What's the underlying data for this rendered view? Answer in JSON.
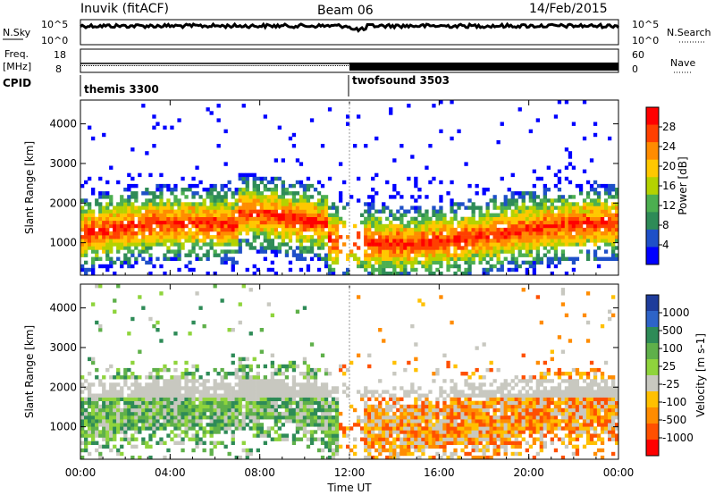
{
  "header": {
    "station": "Inuvik (fitACF)",
    "beam": "Beam 06",
    "date": "14/Feb/2015"
  },
  "noise_panel": {
    "left_label": "N.Sky",
    "right_label": "N.Search",
    "ticks_left": [
      "10^5",
      "10^0"
    ],
    "ticks_right": [
      "10^5",
      "10^0"
    ]
  },
  "freq_panel": {
    "left_label_1": "Freq.",
    "left_label_2": "[MHz]",
    "right_label": "Nave",
    "ticks_left": [
      "18",
      "8"
    ],
    "ticks_right": [
      "60",
      "0"
    ]
  },
  "cpid": {
    "label": "CPID",
    "modes": [
      {
        "name": "themis 3300",
        "start_hour": 0
      },
      {
        "name": "twofsound 3503",
        "start_hour": 12
      }
    ]
  },
  "chart_data": [
    {
      "type": "heatmap",
      "parameter": "Power",
      "ylabel": "Slant Range [km]",
      "colorbar_label": "Power [dB]",
      "colorbar_ticks": [
        "28",
        "24",
        "20",
        "16",
        "12",
        "8",
        "4"
      ],
      "colors": [
        "#ff0000",
        "#ff4000",
        "#ff8c00",
        "#ffc800",
        "#b4d200",
        "#4caf50",
        "#2e8b57",
        "#1e50c8",
        "#0000ff"
      ],
      "ylim": [
        180,
        4600
      ],
      "yticks": [
        "4000",
        "3000",
        "2000",
        "1000"
      ]
    },
    {
      "type": "heatmap",
      "parameter": "Velocity",
      "ylabel": "Slant Range [km]",
      "colorbar_label": "Velocity [m s-1]",
      "colorbar_ticks": [
        "1000",
        "500",
        "100",
        "25",
        "-25",
        "-100",
        "-500",
        "-1000"
      ],
      "colors": [
        "#1e3c9b",
        "#2e64c8",
        "#2e8b57",
        "#5fb04a",
        "#8fd43c",
        "#c8c8c0",
        "#ffc000",
        "#ff8c00",
        "#ff5000",
        "#ff0000"
      ],
      "ylim": [
        180,
        4600
      ],
      "yticks": [
        "4000",
        "3000",
        "2000",
        "1000"
      ]
    }
  ],
  "xaxis": {
    "label": "Time UT",
    "ticks": [
      "00:00",
      "04:00",
      "08:00",
      "12:00",
      "16:00",
      "20:00",
      "00:00"
    ],
    "range_hours": [
      0,
      24
    ]
  }
}
